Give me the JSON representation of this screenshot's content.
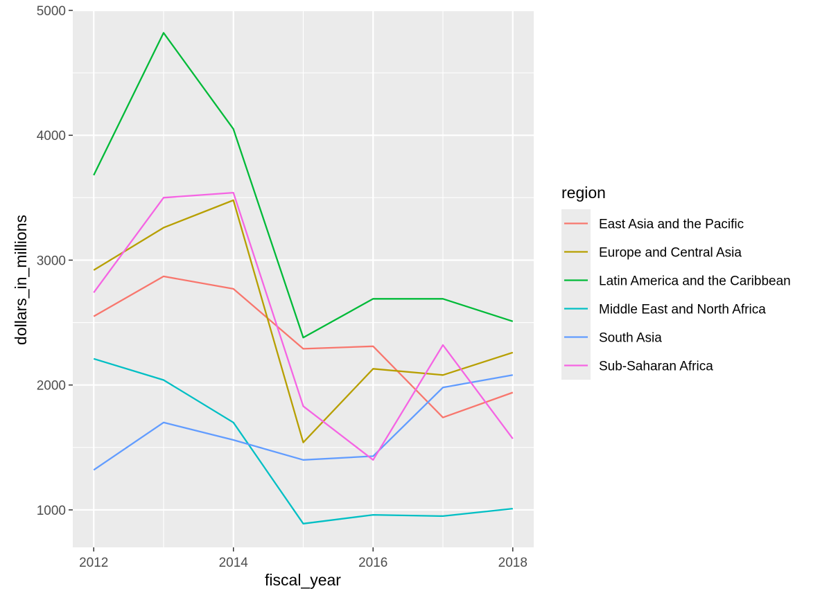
{
  "chart_data": {
    "type": "line",
    "title": "",
    "xlabel": "fiscal_year",
    "ylabel": "dollars_in_millions",
    "x": [
      2012,
      2013,
      2014,
      2015,
      2016,
      2017,
      2018
    ],
    "x_ticks": [
      "2012",
      "2014",
      "2016",
      "2018"
    ],
    "y_ticks": [
      "1000",
      "2000",
      "3000",
      "4000",
      "5000"
    ],
    "xlim": [
      2011.7,
      2018.3
    ],
    "ylim": [
      700,
      5000
    ],
    "grid": true,
    "background": "#ebebeb",
    "legend": {
      "title": "region",
      "position": "right"
    },
    "series": [
      {
        "name": "East Asia and the Pacific",
        "color": "#F8766D",
        "values": [
          2550,
          2870,
          2770,
          2290,
          2310,
          1740,
          1940
        ]
      },
      {
        "name": "Europe and Central Asia",
        "color": "#B79F00",
        "values": [
          2920,
          3260,
          3480,
          1540,
          2130,
          2080,
          2260
        ]
      },
      {
        "name": "Latin America and the Caribbean",
        "color": "#00BA38",
        "values": [
          3680,
          4820,
          4050,
          2380,
          2690,
          2690,
          2510
        ]
      },
      {
        "name": "Middle East and North Africa",
        "color": "#00BFC4",
        "values": [
          2210,
          2040,
          1700,
          890,
          960,
          950,
          1010
        ]
      },
      {
        "name": "South Asia",
        "color": "#619CFF",
        "values": [
          1320,
          1700,
          1560,
          1400,
          1430,
          1980,
          2080
        ]
      },
      {
        "name": "Sub-Saharan Africa",
        "color": "#F564E3",
        "values": [
          2740,
          3500,
          3540,
          1830,
          1400,
          2320,
          1570
        ]
      }
    ]
  }
}
